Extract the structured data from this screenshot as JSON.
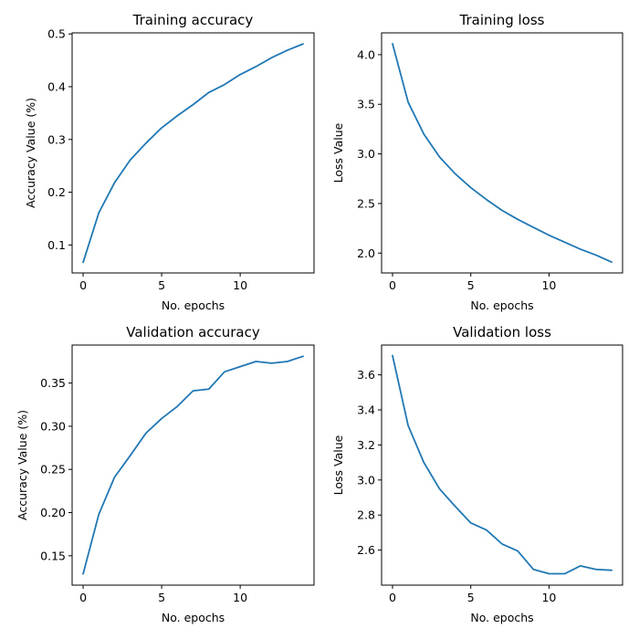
{
  "chart_data": [
    {
      "type": "line",
      "title": "Training accuracy",
      "xlabel": "No. epochs",
      "ylabel": "Accuracy Value (%)",
      "xlim": [
        -0.7,
        14.7
      ],
      "ylim": [
        0.047,
        0.502
      ],
      "xticks": [
        0,
        5,
        10
      ],
      "yticks": [
        0.1,
        0.2,
        0.3,
        0.4,
        0.5
      ],
      "ytick_labels": [
        "0.1",
        "0.2",
        "0.3",
        "0.4",
        "0.5"
      ],
      "grid": false,
      "color": "#1f77b4",
      "series": [
        {
          "x": [
            0,
            1,
            2,
            3,
            4,
            5,
            6,
            7,
            8,
            9,
            10,
            11,
            12,
            13,
            14
          ],
          "values": [
            0.067,
            0.161,
            0.218,
            0.261,
            0.293,
            0.322,
            0.345,
            0.366,
            0.389,
            0.404,
            0.423,
            0.438,
            0.455,
            0.469,
            0.481
          ]
        }
      ]
    },
    {
      "type": "line",
      "title": "Training loss",
      "xlabel": "No. epochs",
      "ylabel": "Loss Value",
      "xlim": [
        -0.7,
        14.7
      ],
      "ylim": [
        1.8,
        4.22
      ],
      "xticks": [
        0,
        5,
        10
      ],
      "yticks": [
        2.0,
        2.5,
        3.0,
        3.5,
        4.0
      ],
      "ytick_labels": [
        "2.0",
        "2.5",
        "3.0",
        "3.5",
        "4.0"
      ],
      "grid": false,
      "color": "#1f77b4",
      "series": [
        {
          "x": [
            0,
            1,
            2,
            3,
            4,
            5,
            6,
            7,
            8,
            9,
            10,
            11,
            12,
            13,
            14
          ],
          "values": [
            4.11,
            3.52,
            3.2,
            2.97,
            2.8,
            2.66,
            2.54,
            2.43,
            2.34,
            2.26,
            2.18,
            2.11,
            2.04,
            1.98,
            1.91
          ]
        }
      ]
    },
    {
      "type": "line",
      "title": "Validation accuracy",
      "xlabel": "No. epochs",
      "ylabel": "Accuracy Value (%)",
      "xlim": [
        -0.7,
        14.7
      ],
      "ylim": [
        0.116,
        0.394
      ],
      "xticks": [
        0,
        5,
        10
      ],
      "yticks": [
        0.15,
        0.2,
        0.25,
        0.3,
        0.35
      ],
      "ytick_labels": [
        "0.15",
        "0.20",
        "0.25",
        "0.30",
        "0.35"
      ],
      "grid": false,
      "color": "#1f77b4",
      "series": [
        {
          "x": [
            0,
            1,
            2,
            3,
            4,
            5,
            6,
            7,
            8,
            9,
            10,
            11,
            12,
            13,
            14
          ],
          "values": [
            0.129,
            0.198,
            0.241,
            0.266,
            0.292,
            0.309,
            0.323,
            0.341,
            0.343,
            0.363,
            0.369,
            0.375,
            0.373,
            0.375,
            0.381
          ]
        }
      ]
    },
    {
      "type": "line",
      "title": "Validation loss",
      "xlabel": "No. epochs",
      "ylabel": "Loss Value",
      "xlim": [
        -0.7,
        14.7
      ],
      "ylim": [
        2.4,
        3.77
      ],
      "xticks": [
        0,
        5,
        10
      ],
      "yticks": [
        2.6,
        2.8,
        3.0,
        3.2,
        3.4,
        3.6
      ],
      "ytick_labels": [
        "2.6",
        "2.8",
        "3.0",
        "3.2",
        "3.4",
        "3.6"
      ],
      "grid": false,
      "color": "#1f77b4",
      "series": [
        {
          "x": [
            0,
            1,
            2,
            3,
            4,
            5,
            6,
            7,
            8,
            9,
            10,
            11,
            12,
            13,
            14
          ],
          "values": [
            3.71,
            3.31,
            3.1,
            2.95,
            2.85,
            2.755,
            2.715,
            2.635,
            2.595,
            2.49,
            2.465,
            2.465,
            2.51,
            2.49,
            2.485
          ]
        }
      ]
    }
  ]
}
